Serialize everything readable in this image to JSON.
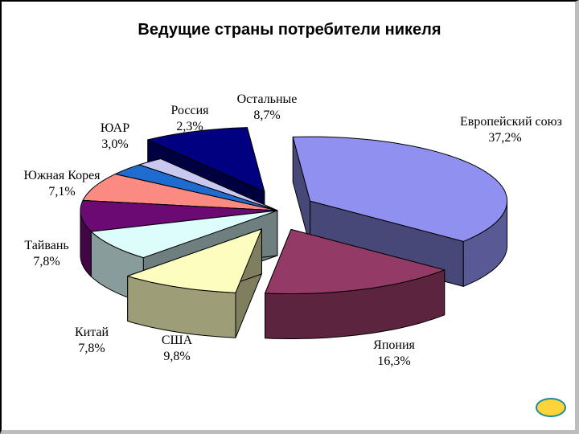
{
  "chart_data": {
    "type": "pie",
    "title": "Ведущие страны потребители никеля",
    "three_d": true,
    "slices": [
      {
        "label": "Европейский союз",
        "value_label": "37,2%",
        "value": 37.2,
        "color": "#9090f0",
        "exploded": true
      },
      {
        "label": "Япония",
        "value_label": "16,3%",
        "value": 16.3,
        "color": "#943a66",
        "exploded": true
      },
      {
        "label": "США",
        "value_label": "9,8%",
        "value": 9.8,
        "color": "#fdfdc0",
        "exploded": true
      },
      {
        "label": "Китай",
        "value_label": "7,8%",
        "value": 7.8,
        "color": "#ddfcfc",
        "exploded": false
      },
      {
        "label": "Тайвань",
        "value_label": "7,8%",
        "value": 7.8,
        "color": "#6a0a72",
        "exploded": false
      },
      {
        "label": "Южная Корея",
        "value_label": "7,1%",
        "value": 7.1,
        "color": "#fb8b82",
        "exploded": false
      },
      {
        "label": "ЮАР",
        "value_label": "3,0%",
        "value": 3.0,
        "color": "#1e6cd0",
        "exploded": false
      },
      {
        "label": "Россия",
        "value_label": "2,3%",
        "value": 2.3,
        "color": "#c8c8f0",
        "exploded": false
      },
      {
        "label": "Остальные",
        "value_label": "8,7%",
        "value": 8.7,
        "color": "#000080",
        "exploded": true
      }
    ]
  },
  "nav": {
    "button_color": "#ffd43b"
  }
}
